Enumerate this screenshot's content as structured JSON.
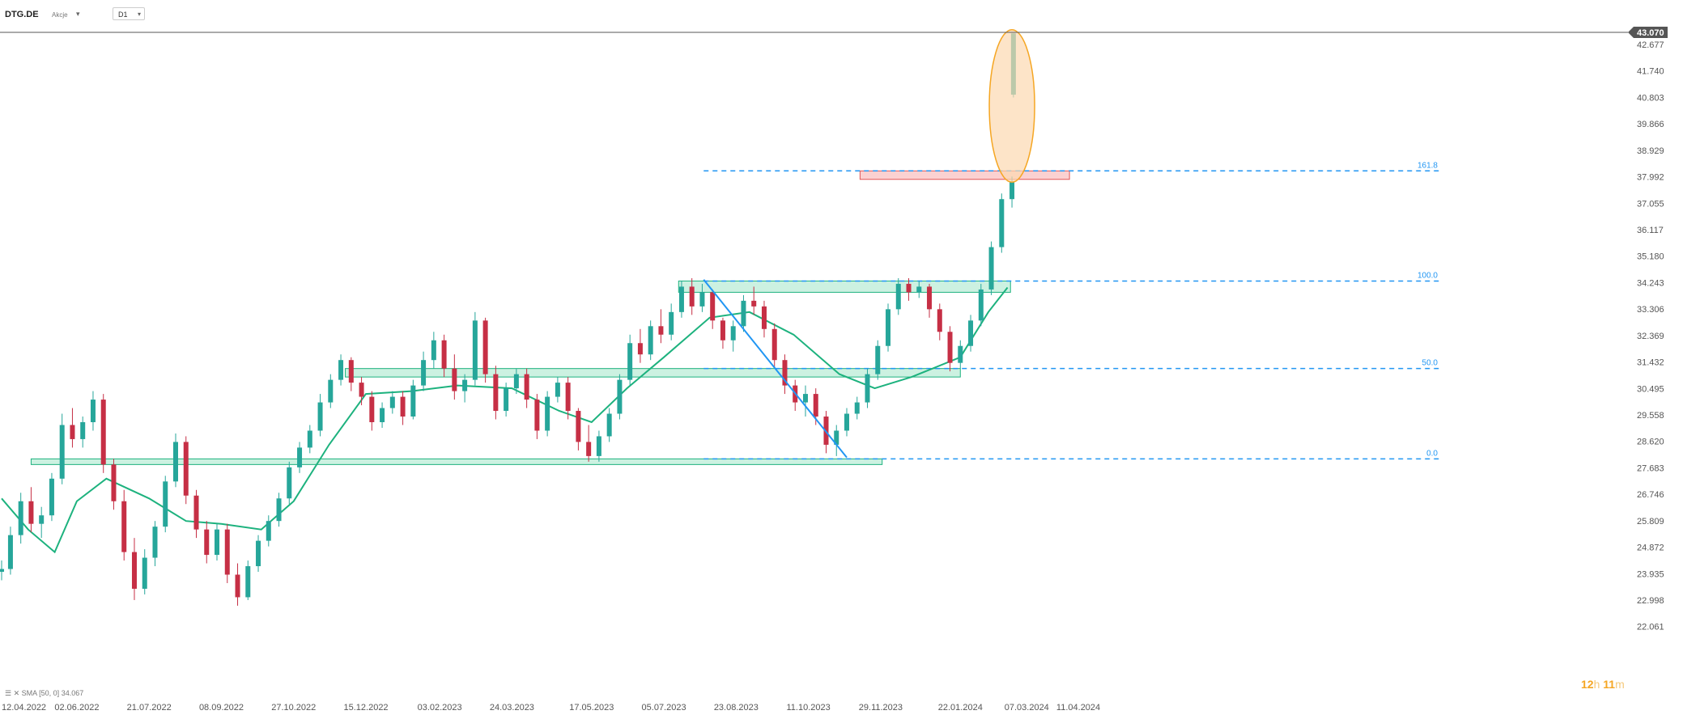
{
  "toolbar": {
    "symbol": "DTG.DE",
    "instrument_type": "Akcje",
    "timeframe": "D1"
  },
  "price_tag": "43.070",
  "timer": {
    "hours": "12",
    "h_unit": "h",
    "minutes": "11",
    "m_unit": "m"
  },
  "sma_legend": {
    "icons": "☰ ✕",
    "label": "SMA [50, 0]",
    "value": "34.067"
  },
  "colors": {
    "up": "#26a69a",
    "down": "#c62f45",
    "sma": "#1db27e",
    "zone_fill": "#c7f0de",
    "zone_stroke": "#1db27e",
    "fib_line": "#2196f3",
    "resistance_fill": "#fbd1d1",
    "resistance_stroke": "#e05656",
    "highlight_fill": "#fcd9b1",
    "highlight_stroke": "#f5a623",
    "timer": "#f5a623"
  },
  "chart_data": {
    "type": "candlestick",
    "symbol": "DTG.DE",
    "timeframe": "D1",
    "last_price": 43.07,
    "y_ticks": [
      "42.677",
      "41.740",
      "40.803",
      "39.866",
      "38.929",
      "37.992",
      "37.055",
      "36.117",
      "35.180",
      "34.243",
      "33.306",
      "32.369",
      "31.432",
      "30.495",
      "29.558",
      "28.620",
      "27.683",
      "26.746",
      "25.809",
      "24.872",
      "23.935",
      "22.998",
      "22.061"
    ],
    "x_ticks": [
      "12.04.2022",
      "02.06.2022",
      "21.07.2022",
      "08.09.2022",
      "27.10.2022",
      "15.12.2022",
      "03.02.2023",
      "24.03.2023",
      "17.05.2023",
      "05.07.2023",
      "23.08.2023",
      "11.10.2023",
      "29.11.2023",
      "22.01.2024",
      "07.03.2024",
      "11.04.2024"
    ],
    "sma": {
      "name": "SMA [50, 0]",
      "period": 50,
      "last_value": 34.067,
      "points": [
        [
          "2022-04-12",
          26.6
        ],
        [
          "2022-04-30",
          25.5
        ],
        [
          "2022-05-18",
          24.7
        ],
        [
          "2022-06-02",
          26.5
        ],
        [
          "2022-06-22",
          27.3
        ],
        [
          "2022-07-21",
          26.6
        ],
        [
          "2022-08-15",
          25.8
        ],
        [
          "2022-09-08",
          25.7
        ],
        [
          "2022-10-05",
          25.5
        ],
        [
          "2022-10-27",
          26.5
        ],
        [
          "2022-11-20",
          28.5
        ],
        [
          "2022-12-15",
          30.3
        ],
        [
          "2023-01-15",
          30.4
        ],
        [
          "2023-02-15",
          30.6
        ],
        [
          "2023-03-24",
          30.5
        ],
        [
          "2023-04-25",
          29.7
        ],
        [
          "2023-05-17",
          29.3
        ],
        [
          "2023-06-10",
          30.5
        ],
        [
          "2023-07-05",
          31.6
        ],
        [
          "2023-08-05",
          33.0
        ],
        [
          "2023-09-01",
          33.2
        ],
        [
          "2023-10-01",
          32.4
        ],
        [
          "2023-11-01",
          31.0
        ],
        [
          "2023-11-25",
          30.5
        ],
        [
          "2023-12-20",
          30.9
        ],
        [
          "2024-01-22",
          31.6
        ],
        [
          "2024-02-10",
          33.2
        ],
        [
          "2024-02-23",
          34.07
        ]
      ]
    },
    "candles_ohlc": [
      [
        "2022-04-12",
        24.0,
        24.4,
        23.7,
        24.1
      ],
      [
        "2022-04-18",
        24.1,
        25.6,
        23.9,
        25.3
      ],
      [
        "2022-04-25",
        25.3,
        26.8,
        25.0,
        26.5
      ],
      [
        "2022-05-02",
        26.5,
        27.0,
        25.4,
        25.7
      ],
      [
        "2022-05-09",
        25.7,
        26.3,
        25.2,
        26.0
      ],
      [
        "2022-05-16",
        26.0,
        27.5,
        25.8,
        27.3
      ],
      [
        "2022-05-23",
        27.3,
        29.6,
        27.1,
        29.2
      ],
      [
        "2022-05-30",
        29.2,
        29.8,
        28.4,
        28.7
      ],
      [
        "2022-06-06",
        28.7,
        29.5,
        28.4,
        29.3
      ],
      [
        "2022-06-13",
        29.3,
        30.4,
        29.0,
        30.1
      ],
      [
        "2022-06-20",
        30.1,
        30.3,
        27.5,
        27.8
      ],
      [
        "2022-06-27",
        27.8,
        28.0,
        26.2,
        26.5
      ],
      [
        "2022-07-04",
        26.5,
        26.9,
        24.4,
        24.7
      ],
      [
        "2022-07-11",
        24.7,
        25.2,
        23.0,
        23.4
      ],
      [
        "2022-07-18",
        23.4,
        24.8,
        23.2,
        24.5
      ],
      [
        "2022-07-25",
        24.5,
        25.8,
        24.2,
        25.6
      ],
      [
        "2022-08-01",
        25.6,
        27.4,
        25.4,
        27.2
      ],
      [
        "2022-08-08",
        27.2,
        28.9,
        27.0,
        28.6
      ],
      [
        "2022-08-15",
        28.6,
        28.8,
        26.4,
        26.7
      ],
      [
        "2022-08-22",
        26.7,
        26.9,
        25.2,
        25.5
      ],
      [
        "2022-08-29",
        25.5,
        25.8,
        24.3,
        24.6
      ],
      [
        "2022-09-05",
        24.6,
        25.7,
        24.4,
        25.5
      ],
      [
        "2022-09-12",
        25.5,
        25.7,
        23.6,
        23.9
      ],
      [
        "2022-09-19",
        23.9,
        24.3,
        22.8,
        23.1
      ],
      [
        "2022-09-26",
        23.1,
        24.4,
        23.0,
        24.2
      ],
      [
        "2022-10-03",
        24.2,
        25.3,
        24.0,
        25.1
      ],
      [
        "2022-10-10",
        25.1,
        26.0,
        24.9,
        25.8
      ],
      [
        "2022-10-17",
        25.8,
        26.8,
        25.6,
        26.6
      ],
      [
        "2022-10-24",
        26.6,
        27.9,
        26.4,
        27.7
      ],
      [
        "2022-10-31",
        27.7,
        28.6,
        27.5,
        28.4
      ],
      [
        "2022-11-07",
        28.4,
        29.2,
        28.2,
        29.0
      ],
      [
        "2022-11-14",
        29.0,
        30.3,
        28.8,
        30.0
      ],
      [
        "2022-11-21",
        30.0,
        31.0,
        29.8,
        30.8
      ],
      [
        "2022-11-28",
        30.8,
        31.7,
        30.6,
        31.5
      ],
      [
        "2022-12-05",
        31.5,
        31.6,
        30.4,
        30.7
      ],
      [
        "2022-12-12",
        30.7,
        30.9,
        29.9,
        30.2
      ],
      [
        "2022-12-19",
        30.2,
        30.4,
        29.0,
        29.3
      ],
      [
        "2022-12-26",
        29.3,
        30.0,
        29.1,
        29.8
      ],
      [
        "2023-01-02",
        29.8,
        30.4,
        29.6,
        30.2
      ],
      [
        "2023-01-09",
        30.2,
        30.4,
        29.2,
        29.5
      ],
      [
        "2023-01-16",
        29.5,
        30.8,
        29.4,
        30.6
      ],
      [
        "2023-01-23",
        30.6,
        31.8,
        30.4,
        31.5
      ],
      [
        "2023-01-30",
        31.5,
        32.5,
        31.2,
        32.2
      ],
      [
        "2023-02-06",
        32.2,
        32.4,
        30.9,
        31.2
      ],
      [
        "2023-02-13",
        31.2,
        31.7,
        30.1,
        30.4
      ],
      [
        "2023-02-20",
        30.4,
        31.0,
        30.0,
        30.8
      ],
      [
        "2023-02-27",
        30.8,
        33.2,
        30.6,
        32.9
      ],
      [
        "2023-03-06",
        32.9,
        33.0,
        30.7,
        31.0
      ],
      [
        "2023-03-13",
        31.0,
        31.3,
        29.4,
        29.7
      ],
      [
        "2023-03-20",
        29.7,
        30.7,
        29.5,
        30.5
      ],
      [
        "2023-03-27",
        30.5,
        31.2,
        30.3,
        31.0
      ],
      [
        "2023-04-03",
        31.0,
        31.2,
        29.8,
        30.1
      ],
      [
        "2023-04-10",
        30.1,
        30.3,
        28.7,
        29.0
      ],
      [
        "2023-04-17",
        29.0,
        30.4,
        28.8,
        30.2
      ],
      [
        "2023-04-24",
        30.2,
        30.9,
        30.0,
        30.7
      ],
      [
        "2023-05-01",
        30.7,
        30.9,
        29.4,
        29.7
      ],
      [
        "2023-05-08",
        29.7,
        29.8,
        28.3,
        28.6
      ],
      [
        "2023-05-15",
        28.6,
        29.2,
        27.9,
        28.1
      ],
      [
        "2023-05-22",
        28.1,
        29.0,
        27.9,
        28.8
      ],
      [
        "2023-05-29",
        28.8,
        29.8,
        28.6,
        29.6
      ],
      [
        "2023-06-05",
        29.6,
        31.0,
        29.4,
        30.8
      ],
      [
        "2023-06-12",
        30.8,
        32.4,
        30.6,
        32.1
      ],
      [
        "2023-06-19",
        32.1,
        32.6,
        31.4,
        31.7
      ],
      [
        "2023-06-26",
        31.7,
        32.9,
        31.5,
        32.7
      ],
      [
        "2023-07-03",
        32.7,
        33.3,
        32.1,
        32.4
      ],
      [
        "2023-07-10",
        32.4,
        33.5,
        32.2,
        33.2
      ],
      [
        "2023-07-17",
        33.2,
        34.3,
        33.0,
        34.1
      ],
      [
        "2023-07-24",
        34.1,
        34.4,
        33.1,
        33.4
      ],
      [
        "2023-07-31",
        33.4,
        34.2,
        33.2,
        33.9
      ],
      [
        "2023-08-07",
        33.9,
        34.0,
        32.6,
        32.9
      ],
      [
        "2023-08-14",
        32.9,
        33.0,
        31.9,
        32.2
      ],
      [
        "2023-08-21",
        32.2,
        32.9,
        31.8,
        32.7
      ],
      [
        "2023-08-28",
        32.7,
        33.8,
        32.5,
        33.6
      ],
      [
        "2023-09-04",
        33.6,
        34.1,
        33.1,
        33.4
      ],
      [
        "2023-09-11",
        33.4,
        33.6,
        32.3,
        32.6
      ],
      [
        "2023-09-18",
        32.6,
        32.8,
        31.2,
        31.5
      ],
      [
        "2023-09-25",
        31.5,
        31.7,
        30.3,
        30.6
      ],
      [
        "2023-10-02",
        30.6,
        30.8,
        29.7,
        30.0
      ],
      [
        "2023-10-09",
        30.0,
        30.6,
        29.5,
        30.3
      ],
      [
        "2023-10-16",
        30.3,
        30.5,
        29.2,
        29.5
      ],
      [
        "2023-10-23",
        29.5,
        29.7,
        28.2,
        28.5
      ],
      [
        "2023-10-30",
        28.5,
        29.2,
        28.1,
        29.0
      ],
      [
        "2023-11-06",
        29.0,
        29.8,
        28.8,
        29.6
      ],
      [
        "2023-11-13",
        29.6,
        30.2,
        29.4,
        30.0
      ],
      [
        "2023-11-20",
        30.0,
        31.2,
        29.8,
        31.0
      ],
      [
        "2023-11-27",
        31.0,
        32.2,
        30.8,
        32.0
      ],
      [
        "2023-12-04",
        32.0,
        33.5,
        31.8,
        33.3
      ],
      [
        "2023-12-11",
        33.3,
        34.4,
        33.1,
        34.2
      ],
      [
        "2023-12-18",
        34.2,
        34.4,
        33.6,
        33.9
      ],
      [
        "2023-12-25",
        33.9,
        34.3,
        33.7,
        34.1
      ],
      [
        "2024-01-01",
        34.1,
        34.2,
        33.0,
        33.3
      ],
      [
        "2024-01-08",
        33.3,
        33.5,
        32.2,
        32.5
      ],
      [
        "2024-01-15",
        32.5,
        32.7,
        31.1,
        31.4
      ],
      [
        "2024-01-22",
        31.4,
        32.2,
        31.2,
        32.0
      ],
      [
        "2024-01-29",
        32.0,
        33.1,
        31.8,
        32.9
      ],
      [
        "2024-02-05",
        32.9,
        34.2,
        32.7,
        34.0
      ],
      [
        "2024-02-12",
        34.0,
        35.7,
        33.8,
        35.5
      ],
      [
        "2024-02-19",
        35.5,
        37.4,
        35.3,
        37.2
      ],
      [
        "2024-02-26",
        37.2,
        38.0,
        36.9,
        37.8
      ],
      [
        "2024-02-27",
        40.9,
        43.07,
        40.8,
        43.07
      ]
    ],
    "annotations": {
      "support_zones": [
        {
          "from": "2022-05-02",
          "to": "2023-11-30",
          "low": 27.8,
          "high": 28.0
        },
        {
          "from": "2022-12-01",
          "to": "2024-01-22",
          "low": 30.9,
          "high": 31.2
        },
        {
          "from": "2023-07-15",
          "to": "2024-02-25",
          "low": 33.9,
          "high": 34.3
        }
      ],
      "resistance_zone": {
        "from": "2023-11-15",
        "to": "2024-04-05",
        "low": 37.9,
        "high": 38.2
      },
      "fibonacci": [
        {
          "level": "0.0",
          "price": 28.0
        },
        {
          "level": "50.0",
          "price": 31.2
        },
        {
          "level": "100.0",
          "price": 34.3
        },
        {
          "level": "161.8",
          "price": 38.2
        }
      ],
      "trendline": {
        "from": [
          "2023-08-01",
          34.35
        ],
        "to": [
          "2023-11-06",
          28.05
        ]
      },
      "highlight_ellipse": {
        "center": [
          "2024-02-26",
          40.4
        ],
        "price_top": 43.2,
        "price_bottom": 37.8
      }
    }
  }
}
